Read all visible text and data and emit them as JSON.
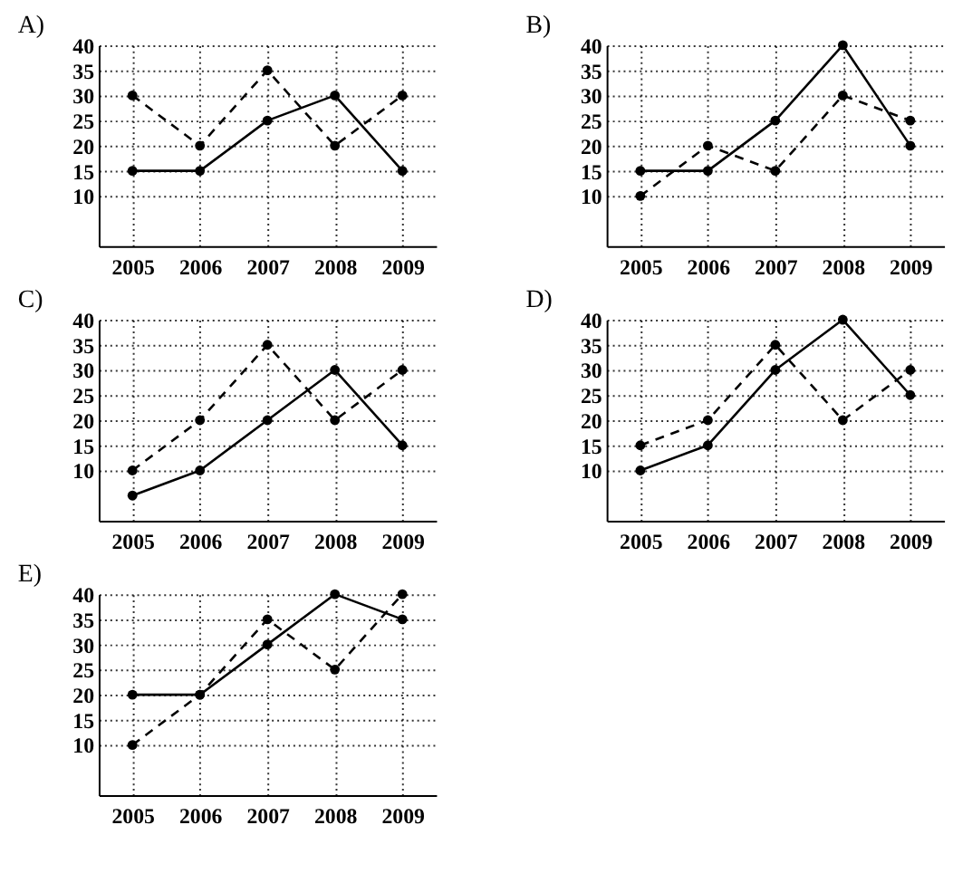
{
  "chart_data": [
    {
      "type": "line",
      "title": "A)",
      "categories": [
        "2005",
        "2006",
        "2007",
        "2008",
        "2009"
      ],
      "ylim": [
        0,
        40
      ],
      "yticks": [
        10,
        15,
        20,
        25,
        30,
        35,
        40
      ],
      "grid": true,
      "marker": "circle",
      "series": [
        {
          "color": "#000000",
          "line_style": "solid",
          "values": [
            15,
            15,
            25,
            30,
            15
          ]
        },
        {
          "color": "#000000",
          "line_style": "dashed",
          "values": [
            30,
            20,
            35,
            20,
            30
          ]
        }
      ]
    },
    {
      "type": "line",
      "title": "B)",
      "categories": [
        "2005",
        "2006",
        "2007",
        "2008",
        "2009"
      ],
      "ylim": [
        0,
        40
      ],
      "yticks": [
        10,
        15,
        20,
        25,
        30,
        35,
        40
      ],
      "grid": true,
      "marker": "circle",
      "series": [
        {
          "color": "#000000",
          "line_style": "solid",
          "values": [
            15,
            15,
            25,
            40,
            20
          ]
        },
        {
          "color": "#000000",
          "line_style": "dashed",
          "values": [
            10,
            20,
            15,
            30,
            25
          ]
        }
      ]
    },
    {
      "type": "line",
      "title": "C)",
      "categories": [
        "2005",
        "2006",
        "2007",
        "2008",
        "2009"
      ],
      "ylim": [
        0,
        40
      ],
      "yticks": [
        10,
        15,
        20,
        25,
        30,
        35,
        40
      ],
      "grid": true,
      "marker": "circle",
      "series": [
        {
          "color": "#000000",
          "line_style": "solid",
          "values": [
            5,
            10,
            20,
            30,
            15
          ]
        },
        {
          "color": "#000000",
          "line_style": "dashed",
          "values": [
            10,
            20,
            35,
            20,
            30
          ]
        }
      ]
    },
    {
      "type": "line",
      "title": "D)",
      "categories": [
        "2005",
        "2006",
        "2007",
        "2008",
        "2009"
      ],
      "ylim": [
        0,
        40
      ],
      "yticks": [
        10,
        15,
        20,
        25,
        30,
        35,
        40
      ],
      "grid": true,
      "marker": "circle",
      "series": [
        {
          "color": "#000000",
          "line_style": "solid",
          "values": [
            10,
            15,
            30,
            40,
            25
          ]
        },
        {
          "color": "#000000",
          "line_style": "dashed",
          "values": [
            15,
            20,
            35,
            20,
            30
          ]
        }
      ]
    },
    {
      "type": "line",
      "title": "E)",
      "categories": [
        "2005",
        "2006",
        "2007",
        "2008",
        "2009"
      ],
      "ylim": [
        0,
        40
      ],
      "yticks": [
        10,
        15,
        20,
        25,
        30,
        35,
        40
      ],
      "grid": true,
      "marker": "circle",
      "series": [
        {
          "color": "#000000",
          "line_style": "solid",
          "values": [
            20,
            20,
            30,
            40,
            35
          ]
        },
        {
          "color": "#000000",
          "line_style": "dashed",
          "values": [
            10,
            20,
            35,
            25,
            40
          ]
        }
      ]
    }
  ]
}
